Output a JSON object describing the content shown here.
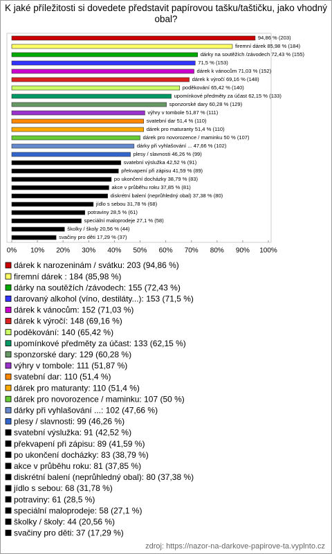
{
  "chart_data": {
    "type": "bar",
    "orientation": "horizontal",
    "title": "K jaké příležitosti si dovedete představit papírovou tašku/taštičku, jako vhodný obal?",
    "categories": [
      "dárek k narozeninám / svátku",
      "firemní dárek  ",
      "dárky na soutěžích /závodech",
      "darovaný alkohol (víno, destiláty...)",
      "dárek k vánocům",
      "dárek k výročí",
      "poděkování",
      "upomínkové předměty za účast",
      "sponzorské dary",
      "výhry v tombole",
      "svatební dar",
      "dárek pro maturanty",
      "dárek pro novorozence / maminku",
      "dárky při vyhlašování ...",
      "plesy / slavnosti",
      "svatební výslužka",
      "překvapení při zápisu",
      "po ukončení docházky",
      "akce v průběhu roku",
      "diskrétní balení (neprůhledný obal)",
      "jídlo s sebou",
      "potraviny",
      "speciální maloprodeje",
      "školky / školy",
      "svačiny pro děti"
    ],
    "values": [
      94.86,
      85.98,
      72.43,
      71.5,
      71.03,
      69.16,
      65.42,
      62.15,
      60.28,
      51.87,
      51.4,
      51.4,
      50,
      47.66,
      46.26,
      42.52,
      41.59,
      38.79,
      37.85,
      37.38,
      31.78,
      28.5,
      27.1,
      20.56,
      17.29
    ],
    "value_labels": [
      "94,86 % (203)",
      "firemní dárek   85,98 % (184)",
      "dárky na soutěžích /závodech 72,43 % (155)",
      "71,5 % (153)",
      "dárek k vánocům 71,03 % (152)",
      "dárek k výročí 69,16 % (148)",
      "poděkování 65,42 % (140)",
      "upomínkové předměty za účast 62,15 % (133)",
      "sponzorské dary 60,28 % (129)",
      "výhry v tombole 51,87 % (111)",
      "svatební dar 51,4 % (110)",
      "dárek pro maturanty 51,4 % (110)",
      "dárek pro novorozence / maminku 50 % (107)",
      "dárky při vyhlašování ... 47,66 % (102)",
      "plesy / slavnosti 46,26 % (99)",
      "svatební výslužka 42,52 % (91)",
      "překvapení při zápisu 41,59 % (89)",
      "po ukončení docházky 38,79 % (83)",
      "akce v průběhu roku 37,85 % (81)",
      "diskrétní balení (neprůhledný obal) 37,38 % (80)",
      "jídlo s sebou 31,78 % (68)",
      "potraviny 28,5 % (61)",
      "speciální maloprodeje 27,1 % (58)",
      "školky / školy 20,56 % (44)",
      "svačiny pro děti 17,29 % (37)"
    ],
    "legend_labels": [
      "dárek k narozeninám / svátku: 203 (94,86 %)",
      "firemní dárek  : 184 (85,98 %)",
      "dárky na soutěžích /závodech: 155 (72,43 %)",
      "darovaný alkohol (víno, destiláty...): 153 (71,5 %)",
      "dárek k vánocům: 152 (71,03 %)",
      "dárek k výročí: 148 (69,16 %)",
      "poděkování: 140 (65,42 %)",
      "upomínkové předměty za účast: 133 (62,15 %)",
      "sponzorské dary: 129 (60,28 %)",
      "výhry v tombole: 111 (51,87 %)",
      "svatební dar: 110 (51,4 %)",
      "dárek pro maturanty: 110 (51,4 %)",
      "dárek pro novorozence / maminku: 107 (50 %)",
      "dárky při vyhlašování ...: 102 (47,66 %)",
      "plesy / slavnosti: 99 (46,26 %)",
      "svatební výslužka: 91 (42,52 %)",
      "překvapení při zápisu: 89 (41,59 %)",
      "po ukončení docházky: 83 (38,79 %)",
      "akce v průběhu roku: 81 (37,85 %)",
      "diskrétní balení (neprůhledný obal): 80 (37,38 %)",
      "jídlo s sebou: 68 (31,78 %)",
      "potraviny: 61 (28,5 %)",
      "speciální maloprodeje: 58 (27,1 %)",
      "školky / školy: 44 (20,56 %)",
      "svačiny pro děti: 37 (17,29 %)"
    ],
    "colors": [
      "#cc0000",
      "#ffff66",
      "#00aa00",
      "#3333ff",
      "#cc00cc",
      "#dd2222",
      "#ccff66",
      "#009966",
      "#669966",
      "#9933cc",
      "#ff8800",
      "#ffaa00",
      "#66cc33",
      "#6688cc",
      "#3366cc",
      "#000000",
      "#000000",
      "#000000",
      "#000000",
      "#000000",
      "#000000",
      "#000000",
      "#000000",
      "#000000",
      "#000000"
    ],
    "xlim": [
      0,
      100
    ],
    "xticks": [
      {
        "value": 0,
        "label": "0%"
      },
      {
        "value": 10,
        "label": "10%"
      },
      {
        "value": 20,
        "label": "20%"
      },
      {
        "value": 30,
        "label": "30%"
      },
      {
        "value": 40,
        "label": "40%"
      },
      {
        "value": 50,
        "label": "50%"
      },
      {
        "value": 60,
        "label": "60%"
      },
      {
        "value": 70,
        "label": "70%"
      },
      {
        "value": 80,
        "label": "80%"
      },
      {
        "value": 90,
        "label": "90%"
      },
      {
        "value": 100,
        "label": "100%"
      }
    ],
    "source": "zdroj: https://nazor-na-darkove-papirove-ta.vyplnto.cz"
  }
}
